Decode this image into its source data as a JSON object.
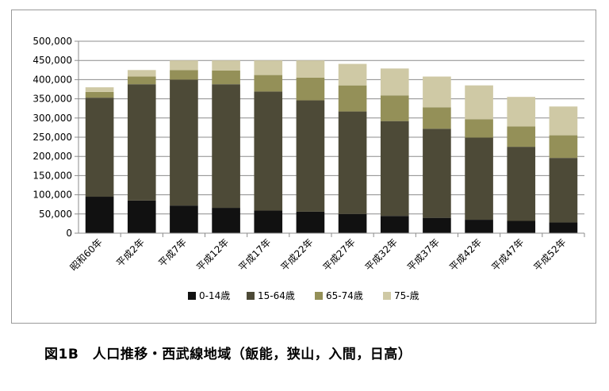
{
  "caption": "図1B　人口推移・西武線地域（飯能，狭山，入間，日高）",
  "chart_data": {
    "type": "bar",
    "stacked": true,
    "categories": [
      "昭和60年",
      "平成2年",
      "平成7年",
      "平成12年",
      "平成17年",
      "平成22年",
      "平成27年",
      "平成32年",
      "平成37年",
      "平成42年",
      "平成47年",
      "平成52年"
    ],
    "series": [
      {
        "name": "0-14歳",
        "color": "#111111",
        "values": [
          95000,
          85000,
          72000,
          66000,
          59000,
          56000,
          50000,
          45000,
          40000,
          35000,
          32000,
          28000
        ]
      },
      {
        "name": "15-64歳",
        "color": "#4d4a37",
        "values": [
          258000,
          303000,
          328000,
          322000,
          310000,
          290000,
          267000,
          247000,
          232000,
          214000,
          193000,
          168000
        ]
      },
      {
        "name": "65-74歳",
        "color": "#949058",
        "values": [
          15000,
          20000,
          25000,
          36000,
          43000,
          59000,
          68000,
          67000,
          56000,
          48000,
          53000,
          59000
        ]
      },
      {
        "name": "75-歳",
        "color": "#cfc9a5",
        "values": [
          12000,
          17000,
          25000,
          26000,
          38000,
          45000,
          56000,
          70000,
          80000,
          88000,
          77000,
          75000
        ]
      }
    ],
    "yticks": [
      "0",
      "50,000",
      "100,000",
      "150,000",
      "200,000",
      "250,000",
      "300,000",
      "350,000",
      "400,000",
      "450,000",
      "500,000"
    ],
    "ylim": [
      0,
      500000
    ],
    "grid": true,
    "legend": "bottom"
  }
}
